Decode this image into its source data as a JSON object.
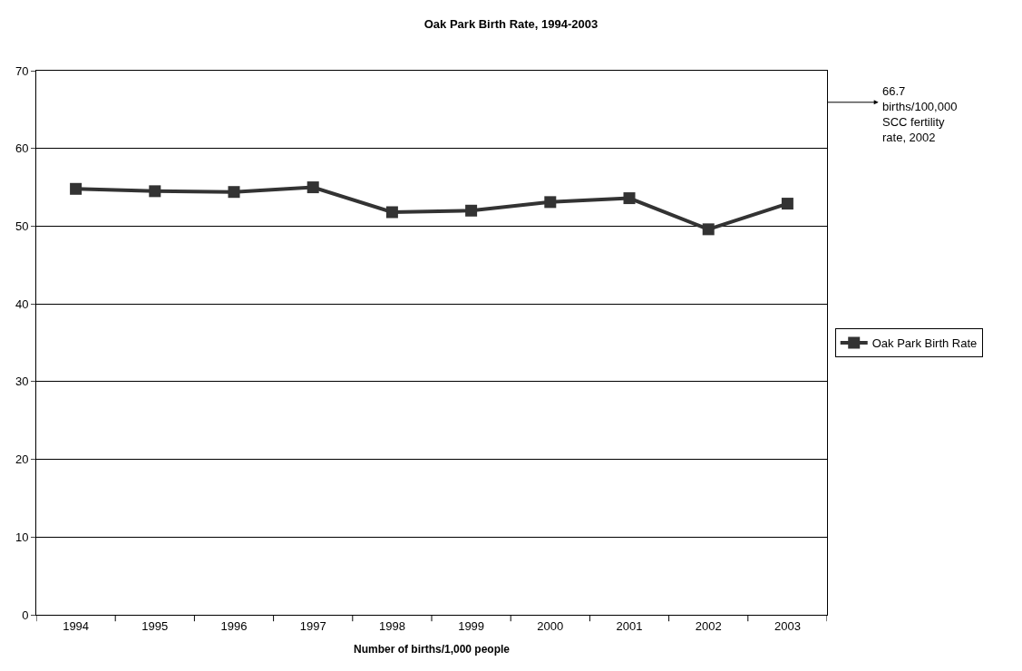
{
  "chart_data": {
    "type": "line",
    "title": "Oak Park Birth Rate, 1994-2003",
    "xlabel": "Number of births/1,000 people",
    "categories": [
      "1994",
      "1995",
      "1996",
      "1997",
      "1998",
      "1999",
      "2000",
      "2001",
      "2002",
      "2003"
    ],
    "series": [
      {
        "name": "Oak Park Birth Rate",
        "color": "#333333",
        "values": [
          54.8,
          54.5,
          54.4,
          55.0,
          51.8,
          52.0,
          53.1,
          53.6,
          49.6,
          52.9
        ]
      }
    ],
    "ylim": [
      0,
      70
    ],
    "yticks": [
      0,
      10,
      20,
      30,
      40,
      50,
      60,
      70
    ],
    "grid": "y",
    "legend": "right",
    "marker": "square",
    "line_style": "solid",
    "annotations": [
      "66.7\nbirths/100,000\nSCC fertility\nrate, 2002"
    ]
  }
}
